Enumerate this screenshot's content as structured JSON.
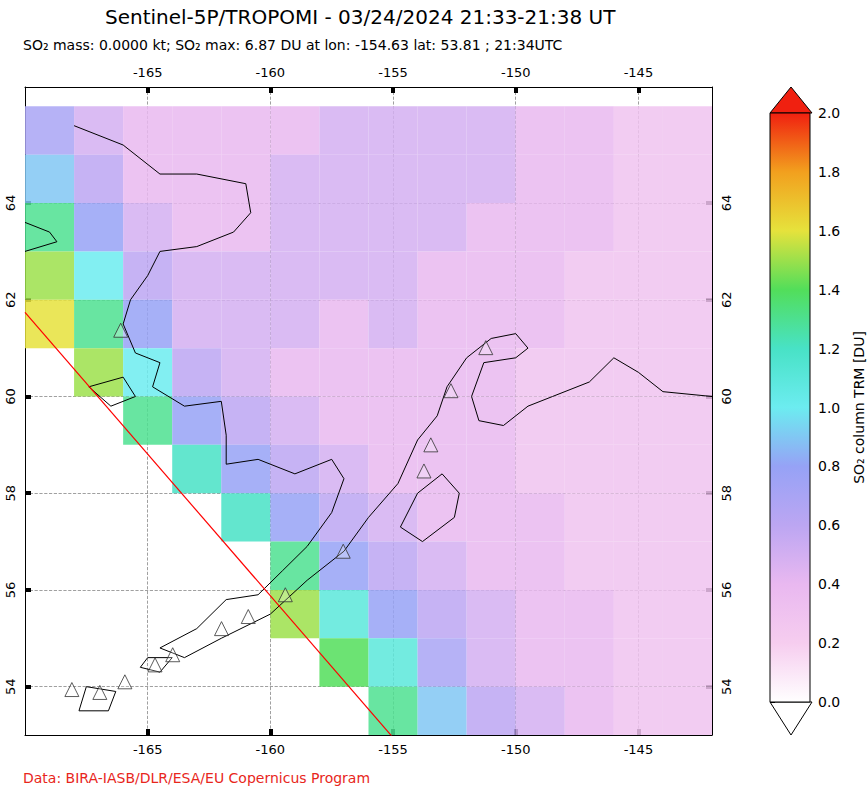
{
  "chart_data": {
    "type": "map",
    "title": "Sentinel-5P/TROPOMI - 03/24/2024 21:33-21:38 UT",
    "subtitle": "SO₂ mass: 0.0000 kt; SO₂ max: 6.87 DU at lon: -154.63 lat: 53.81 ; 21:34UTC",
    "credit": "Data: BIRA-IASB/DLR/ESA/EU Copernicus Program",
    "xlim": [
      -170,
      -142
    ],
    "xticks": [
      -165,
      -160,
      -155,
      -150,
      -145
    ],
    "ylim": [
      53,
      66.4
    ],
    "yticks": [
      54,
      56,
      58,
      60,
      62,
      64
    ],
    "grid": true,
    "colorbar": {
      "label": "SO₂ column TRM [DU]",
      "lim": [
        0,
        2
      ],
      "ticks": [
        {
          "value": 0,
          "label": "0.0"
        },
        0.2,
        0.4,
        0.6,
        0.8,
        {
          "value": 1,
          "label": "1.0"
        },
        1.2,
        1.4,
        1.6,
        1.8,
        {
          "value": 2,
          "label": "2.0"
        }
      ]
    },
    "colorscale": [
      [
        0,
        "#ffffff"
      ],
      [
        0.2,
        "#f6cdef"
      ],
      [
        0.4,
        "#e9b8f0"
      ],
      [
        0.6,
        "#bca6f2"
      ],
      [
        0.8,
        "#96a2f6"
      ],
      [
        1.0,
        "#6cecf0"
      ],
      [
        1.2,
        "#48e2c6"
      ],
      [
        1.4,
        "#52de5a"
      ],
      [
        1.6,
        "#e6e23c"
      ],
      [
        1.8,
        "#f2a01e"
      ],
      [
        2.0,
        "#f02010"
      ]
    ],
    "cells": {
      "lon": [
        -169,
        -167,
        -165,
        -163,
        -161,
        -159,
        -157,
        -155,
        -153,
        -151,
        -149,
        -147,
        -145,
        -143
      ],
      "lat": [
        65.5,
        64.5,
        63.5,
        62.5,
        61.5,
        60.5,
        59.5,
        58.5,
        57.5,
        56.5,
        55.5,
        54.5,
        53.5
      ],
      "values": [
        [
          0.7,
          0.5,
          0.4,
          0.4,
          0.4,
          0.4,
          0.5,
          0.5,
          0.5,
          0.5,
          0.4,
          0.4,
          0.3,
          0.3
        ],
        [
          0.9,
          0.6,
          0.4,
          0.4,
          0.4,
          0.5,
          0.5,
          0.5,
          0.5,
          0.5,
          0.4,
          0.4,
          0.3,
          0.3
        ],
        [
          1.3,
          0.8,
          0.5,
          0.4,
          0.4,
          0.5,
          0.5,
          0.5,
          0.5,
          0.4,
          0.4,
          0.4,
          0.3,
          0.3
        ],
        [
          1.5,
          1.0,
          0.6,
          0.5,
          0.5,
          0.5,
          0.5,
          0.5,
          0.4,
          0.4,
          0.4,
          0.3,
          0.3,
          0.3
        ],
        [
          1.6,
          1.3,
          0.8,
          0.5,
          0.5,
          0.5,
          0.4,
          0.5,
          0.4,
          0.4,
          0.4,
          0.3,
          0.3,
          0.3
        ],
        [
          null,
          1.5,
          1.0,
          0.6,
          0.5,
          0.4,
          0.4,
          0.4,
          0.4,
          0.4,
          0.3,
          0.3,
          0.3,
          0.3
        ],
        [
          null,
          null,
          1.3,
          0.8,
          0.6,
          0.5,
          0.4,
          0.4,
          0.4,
          0.4,
          0.3,
          0.3,
          0.3,
          0.3
        ],
        [
          null,
          null,
          null,
          1.2,
          0.8,
          0.6,
          0.5,
          0.4,
          0.4,
          0.4,
          0.3,
          0.3,
          0.3,
          0.3
        ],
        [
          null,
          null,
          null,
          null,
          1.2,
          0.8,
          0.6,
          0.5,
          0.4,
          0.4,
          0.4,
          0.3,
          0.3,
          0.3
        ],
        [
          null,
          null,
          null,
          null,
          null,
          1.3,
          0.8,
          0.6,
          0.5,
          0.4,
          0.4,
          0.3,
          0.3,
          0.3
        ],
        [
          null,
          null,
          null,
          null,
          null,
          1.5,
          1.1,
          0.8,
          0.6,
          0.5,
          0.4,
          0.4,
          0.3,
          0.3
        ],
        [
          null,
          null,
          null,
          null,
          null,
          null,
          1.4,
          1.1,
          0.7,
          0.5,
          0.4,
          0.4,
          0.3,
          0.3
        ],
        [
          null,
          null,
          null,
          null,
          null,
          null,
          null,
          1.3,
          0.9,
          0.6,
          0.5,
          0.4,
          0.3,
          0.3
        ]
      ]
    },
    "swath_edge": {
      "color": "#ff0000",
      "points": [
        [
          -170,
          61.74
        ],
        [
          -155.04,
          52.97
        ]
      ]
    },
    "coastlines": [
      [
        [
          -168,
          65.6
        ],
        [
          -166,
          65.2
        ],
        [
          -164.5,
          64.6
        ],
        [
          -163,
          64.6
        ],
        [
          -161,
          64.4
        ],
        [
          -160.8,
          63.8
        ],
        [
          -161.5,
          63.4
        ],
        [
          -163,
          63.1
        ],
        [
          -164.5,
          63.0
        ],
        [
          -165,
          62.5
        ],
        [
          -165.7,
          62.0
        ],
        [
          -166,
          61.5
        ],
        [
          -165.5,
          60.9
        ],
        [
          -164.5,
          60.7
        ],
        [
          -164.8,
          60.2
        ],
        [
          -163.5,
          59.8
        ],
        [
          -162,
          59.9
        ],
        [
          -161.8,
          59.2
        ],
        [
          -161.8,
          58.6
        ],
        [
          -160.5,
          58.7
        ],
        [
          -159,
          58.4
        ],
        [
          -157.5,
          58.7
        ],
        [
          -157.0,
          58.3
        ],
        [
          -157.5,
          57.6
        ],
        [
          -158.5,
          56.9
        ],
        [
          -159.5,
          56.4
        ],
        [
          -160.5,
          55.9
        ],
        [
          -161.8,
          55.8
        ],
        [
          -163,
          55.2
        ],
        [
          -164.5,
          54.8
        ],
        [
          -163.5,
          54.6
        ],
        [
          -162,
          55.0
        ],
        [
          -160,
          55.5
        ],
        [
          -158.5,
          56.2
        ],
        [
          -157,
          56.8
        ],
        [
          -156,
          57.5
        ],
        [
          -154.8,
          58.2
        ],
        [
          -154,
          59.1
        ],
        [
          -153.2,
          59.6
        ],
        [
          -152.8,
          60.2
        ],
        [
          -152,
          60.8
        ],
        [
          -151,
          61.2
        ],
        [
          -150,
          61.3
        ],
        [
          -149.5,
          61.0
        ],
        [
          -150.0,
          60.8
        ],
        [
          -151.3,
          60.7
        ],
        [
          -151.8,
          60.0
        ],
        [
          -151.5,
          59.5
        ],
        [
          -150.5,
          59.4
        ],
        [
          -149.5,
          59.8
        ],
        [
          -148.5,
          60.0
        ],
        [
          -147,
          60.3
        ],
        [
          -146,
          60.8
        ],
        [
          -145,
          60.5
        ],
        [
          -144,
          60.1
        ],
        [
          -142,
          60.0
        ]
      ],
      [
        [
          -154.7,
          57.3
        ],
        [
          -153.8,
          57.0
        ],
        [
          -152.5,
          57.5
        ],
        [
          -152.3,
          58.0
        ],
        [
          -153.0,
          58.4
        ],
        [
          -154.0,
          58.0
        ],
        [
          -154.7,
          57.3
        ]
      ],
      [
        [
          -165,
          54.6
        ],
        [
          -164,
          54.6
        ],
        [
          -164.5,
          54.3
        ],
        [
          -165.3,
          54.4
        ],
        [
          -165,
          54.6
        ]
      ],
      [
        [
          -167.5,
          54.0
        ],
        [
          -166.3,
          53.9
        ],
        [
          -166.6,
          53.5
        ],
        [
          -167.8,
          53.5
        ],
        [
          -167.5,
          54.0
        ]
      ],
      [
        [
          -167.4,
          60.2
        ],
        [
          -166,
          60.4
        ],
        [
          -165.5,
          60.0
        ],
        [
          -166.5,
          59.8
        ],
        [
          -167.4,
          60.2
        ]
      ],
      [
        [
          -170,
          63.6
        ],
        [
          -169,
          63.4
        ],
        [
          -168.7,
          63.2
        ],
        [
          -170,
          63.0
        ]
      ]
    ],
    "volcanoes": {
      "marker": "triangle",
      "points": [
        [
          -168.09,
          53.94
        ],
        [
          -166.95,
          53.88
        ],
        [
          -165.93,
          54.1
        ],
        [
          -164.7,
          54.45
        ],
        [
          -163.98,
          54.66
        ],
        [
          -161.99,
          55.2
        ],
        [
          -160.9,
          55.45
        ],
        [
          -159.39,
          55.9
        ],
        [
          -157.03,
          56.8
        ],
        [
          -153.74,
          58.46
        ],
        [
          -153.46,
          59.0
        ],
        [
          -152.64,
          60.12
        ],
        [
          -151.22,
          61.01
        ],
        [
          -166.1,
          61.37
        ]
      ]
    }
  }
}
